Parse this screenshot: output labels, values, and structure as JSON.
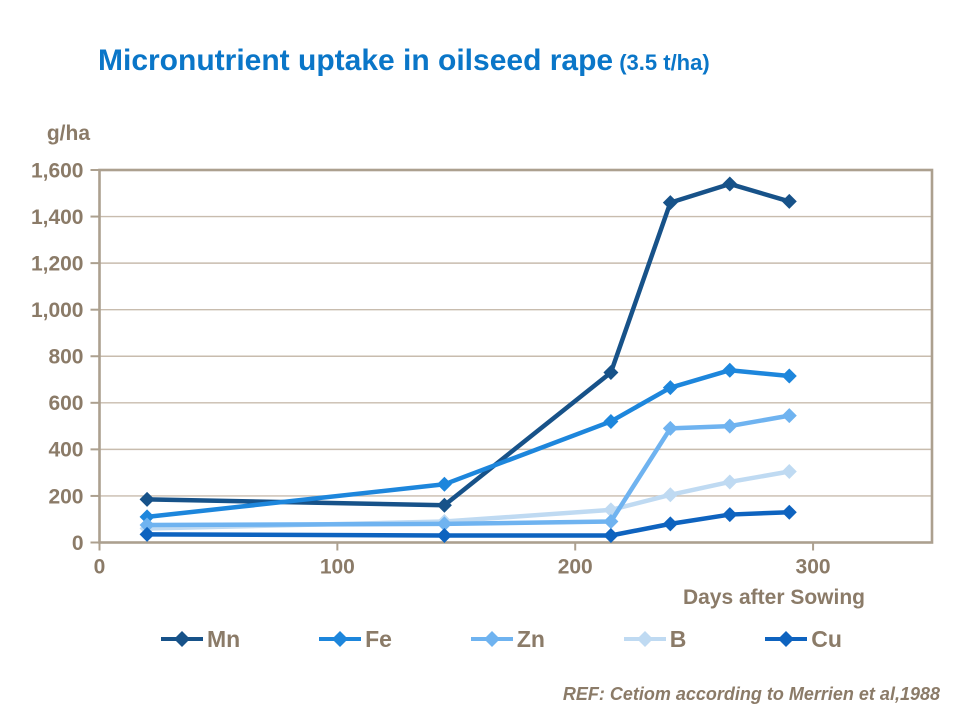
{
  "title": {
    "main": "Micronutrient uptake in oilseed rape",
    "suffix": " (3.5 t/ha)"
  },
  "y_axis_title": "g/ha",
  "x_axis_title": "Days after Sowing",
  "reference": "REF: Cetiom according to Merrien et al,1988",
  "colors": {
    "title_blue": "#0a76c8",
    "axis_text": "#8b7b68",
    "gridline": "#c8bcae",
    "axis_line": "#aca08f"
  },
  "chart_data": {
    "type": "line",
    "title": "Micronutrient uptake in oilseed rape (3.5 t/ha)",
    "xlabel": "Days after Sowing",
    "ylabel": "g/ha",
    "x": [
      20,
      145,
      215,
      240,
      265,
      290
    ],
    "xlim": [
      0,
      350
    ],
    "ylim": [
      0,
      1600
    ],
    "xticks": [
      0,
      100,
      200,
      300
    ],
    "yticks": [
      0,
      200,
      400,
      600,
      800,
      1000,
      1200,
      1400,
      1600
    ],
    "grid": "horizontal",
    "marker": "diamond",
    "legend_position": "bottom",
    "series": [
      {
        "name": "Mn",
        "color": "#175289",
        "values": [
          185,
          160,
          730,
          1460,
          1540,
          1465
        ]
      },
      {
        "name": "Fe",
        "color": "#1d86dc",
        "values": [
          110,
          250,
          520,
          665,
          740,
          715
        ]
      },
      {
        "name": "Zn",
        "color": "#6fb3f0",
        "values": [
          75,
          80,
          90,
          490,
          500,
          545
        ]
      },
      {
        "name": "B",
        "color": "#bfdaf2",
        "values": [
          60,
          90,
          140,
          205,
          260,
          305
        ]
      },
      {
        "name": "Cu",
        "color": "#0e63bf",
        "values": [
          35,
          30,
          30,
          80,
          120,
          130
        ]
      }
    ]
  }
}
